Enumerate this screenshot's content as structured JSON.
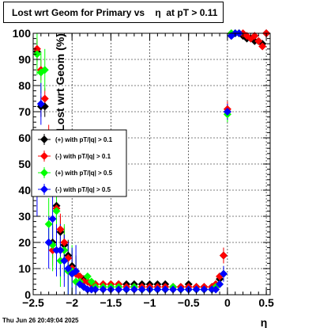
{
  "title": "Lost wrt Geom for Primary vs    η  at pT > 0.11",
  "footer": "Thu Jun 26 20:49:04 2025",
  "chart_data": {
    "type": "scatter",
    "title": "Lost wrt Geom for Primary vs    η  at pT > 0.11",
    "xlabel": "η",
    "ylabel": "Lost wrt Geom (%)",
    "xlim": [
      -2.5,
      0.55
    ],
    "ylim": [
      0,
      100
    ],
    "xticks": [
      -2.5,
      -2,
      -1.5,
      -1,
      -0.5,
      0,
      0.5
    ],
    "xtick_labels": [
      "−2.5",
      "−2",
      "−1.5",
      "−1",
      "−0.5",
      "0",
      "0.5"
    ],
    "yticks": [
      0,
      10,
      20,
      30,
      40,
      50,
      60,
      70,
      80,
      90,
      100
    ],
    "ytick_labels": [
      "0",
      "10",
      "20",
      "30",
      "40",
      "50",
      "60",
      "70",
      "80",
      "90",
      "100"
    ],
    "grid": true,
    "legend_position": "left-middle",
    "series": [
      {
        "name": "(+) with pT/|q| > 0.1",
        "color": "#000000",
        "x": [
          -2.45,
          -2.4,
          -2.35,
          -2.3,
          -2.25,
          -2.2,
          -2.15,
          -2.1,
          -2.05,
          -2.0,
          -1.95,
          -1.9,
          -1.85,
          -1.8,
          -1.75,
          -1.7,
          -1.6,
          -1.5,
          -1.4,
          -1.3,
          -1.2,
          -1.1,
          -1.0,
          -0.9,
          -0.8,
          -0.7,
          -0.6,
          -0.5,
          -0.4,
          -0.3,
          -0.2,
          -0.15,
          -0.1,
          -0.05,
          0.0,
          0.05,
          0.1,
          0.15,
          0.2,
          0.25,
          0.3,
          0.35,
          0.4,
          0.45,
          0.5
        ],
        "y": [
          93,
          72,
          72,
          55,
          20,
          34,
          24,
          19,
          15,
          11,
          9,
          7,
          6,
          5,
          4,
          4,
          4,
          4,
          4,
          4,
          4,
          4,
          4,
          4,
          4,
          3,
          3,
          4,
          3,
          3,
          3,
          4,
          6,
          15,
          70,
          99,
          100,
          100,
          99,
          98,
          98,
          97,
          97,
          96,
          100
        ]
      },
      {
        "name": "(-) with pT/|q| > 0.1",
        "color": "#ff0000",
        "x": [
          -2.45,
          -2.4,
          -2.35,
          -2.3,
          -2.25,
          -2.2,
          -2.15,
          -2.1,
          -2.05,
          -2.0,
          -1.95,
          -1.9,
          -1.85,
          -1.8,
          -1.75,
          -1.7,
          -1.6,
          -1.5,
          -1.4,
          -1.3,
          -1.2,
          -1.1,
          -1.0,
          -0.9,
          -0.8,
          -0.7,
          -0.6,
          -0.5,
          -0.4,
          -0.3,
          -0.2,
          -0.15,
          -0.1,
          -0.05,
          0.0,
          0.05,
          0.1,
          0.15,
          0.2,
          0.25,
          0.3,
          0.35,
          0.4,
          0.45,
          0.5
        ],
        "y": [
          94,
          86,
          75,
          61,
          17,
          33,
          25,
          20,
          14,
          10,
          8,
          7,
          5,
          5,
          4,
          4,
          4,
          4,
          4,
          3,
          3,
          3,
          3,
          3,
          3,
          3,
          3,
          3,
          3,
          3,
          3,
          4,
          7,
          15,
          71,
          100,
          100,
          100,
          100,
          99,
          98,
          99,
          97,
          95,
          100
        ]
      },
      {
        "name": "(+) with pT/|q| > 0.5",
        "color": "#00ff00",
        "x": [
          -2.45,
          -2.4,
          -2.35,
          -2.3,
          -2.25,
          -2.2,
          -2.15,
          -2.1,
          -2.05,
          -2.0,
          -1.95,
          -1.9,
          -1.85,
          -1.8,
          -1.75,
          -1.7,
          -1.6,
          -1.5,
          -1.4,
          -1.3,
          -1.2,
          -1.1,
          -1.0,
          -0.9,
          -0.8,
          -0.7,
          -0.6,
          -0.5,
          -0.4,
          -0.3,
          -0.2,
          -0.15,
          -0.1,
          -0.05,
          0.0,
          0.05,
          0.1,
          0.15
        ],
        "y": [
          92,
          85,
          86,
          27,
          19,
          32,
          13,
          17,
          9,
          9,
          5,
          5,
          3,
          7,
          5,
          3,
          3,
          3,
          3,
          2,
          3,
          2,
          2,
          2,
          2,
          3,
          2,
          2,
          2,
          2,
          2,
          3,
          4,
          8,
          69,
          100,
          100,
          100
        ]
      },
      {
        "name": "(-) with pT/|q| > 0.5",
        "color": "#0000ff",
        "x": [
          -2.45,
          -2.4,
          -2.35,
          -2.3,
          -2.25,
          -2.2,
          -2.15,
          -2.1,
          -2.05,
          -2.0,
          -1.95,
          -1.9,
          -1.85,
          -1.8,
          -1.75,
          -1.7,
          -1.6,
          -1.5,
          -1.4,
          -1.3,
          -1.2,
          -1.1,
          -1.0,
          -0.9,
          -0.8,
          -0.7,
          -0.6,
          -0.5,
          -0.4,
          -0.3,
          -0.2,
          -0.15,
          -0.1,
          -0.05,
          0.0,
          0.05,
          0.1,
          0.15
        ],
        "y": [
          40,
          73,
          53,
          20,
          29,
          17,
          17,
          13,
          10,
          8,
          9,
          4,
          3,
          2,
          2,
          2,
          2,
          2,
          2,
          2,
          2,
          2,
          2,
          2,
          2,
          2,
          2,
          2,
          2,
          2,
          2,
          2,
          4,
          8,
          70,
          99,
          100,
          100
        ]
      }
    ],
    "legend": [
      {
        "label": "(+) with pT/|q| > 0.1",
        "color": "#000000"
      },
      {
        "label": "(-) with pT/|q| > 0.1",
        "color": "#ff0000"
      },
      {
        "label": "(+) with pT/|q| > 0.5",
        "color": "#00ff00"
      },
      {
        "label": "(-) with pT/|q| > 0.5",
        "color": "#0000ff"
      }
    ]
  }
}
